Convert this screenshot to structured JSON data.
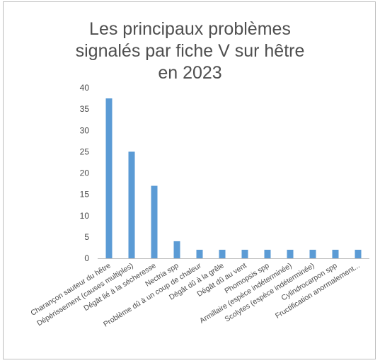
{
  "chart_data": {
    "type": "bar",
    "title_lines": [
      "Les principaux problèmes",
      "signalés par fiche V sur hêtre",
      "en 2023"
    ],
    "categories": [
      "Charançon sauteur du  hêtre",
      "Dépérissement (causes multiples)",
      "Dégât lié à la sécheresse",
      "Nectria spp",
      "Problème dû à un coup de chaleur",
      "Dégât dû à la grêle",
      "Dégât dû au vent",
      "Phomopsis spp",
      "Armillaire (espèce indéterminée)",
      "Scolytes (espèce indéterminée)",
      "Cylindrocarpon spp",
      "Fructification anormalement..."
    ],
    "values": [
      37.5,
      25,
      17,
      4,
      2,
      2,
      2,
      2,
      2,
      2,
      2,
      2
    ],
    "ylim": [
      0,
      40
    ],
    "yticks": [
      0,
      5,
      10,
      15,
      20,
      25,
      30,
      35,
      40
    ],
    "bar_color": "#5b9bd5",
    "grid": false,
    "legend": "none"
  }
}
